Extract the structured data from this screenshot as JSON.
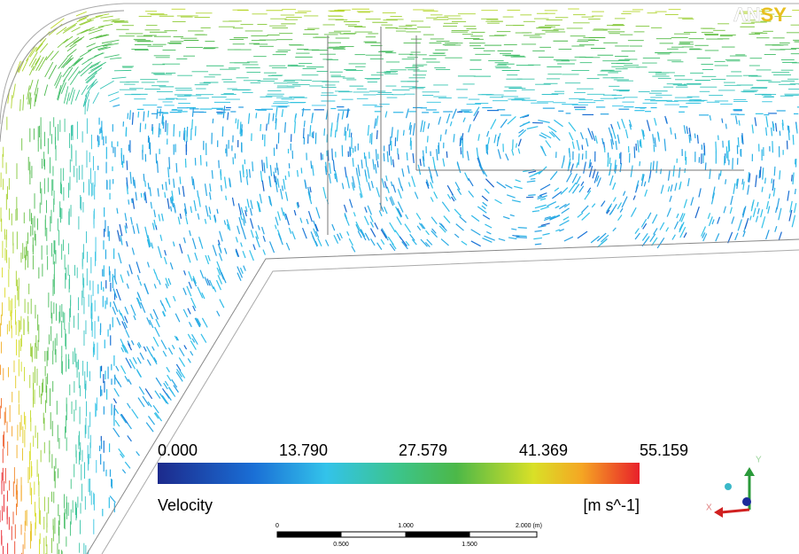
{
  "logo": {
    "part1": "ΛN",
    "part2": "SY"
  },
  "legend": {
    "labels": [
      "0.000",
      "13.790",
      "27.579",
      "41.369",
      "55.159"
    ],
    "variable": "Velocity",
    "unit": "[m s^-1]"
  },
  "scale_bar": {
    "top_labels": [
      "0",
      "1.000",
      "2.000 (m)"
    ],
    "bottom_labels": [
      "0.500",
      "1.500"
    ]
  },
  "axes": {
    "y": "Y",
    "x": "X"
  }
}
